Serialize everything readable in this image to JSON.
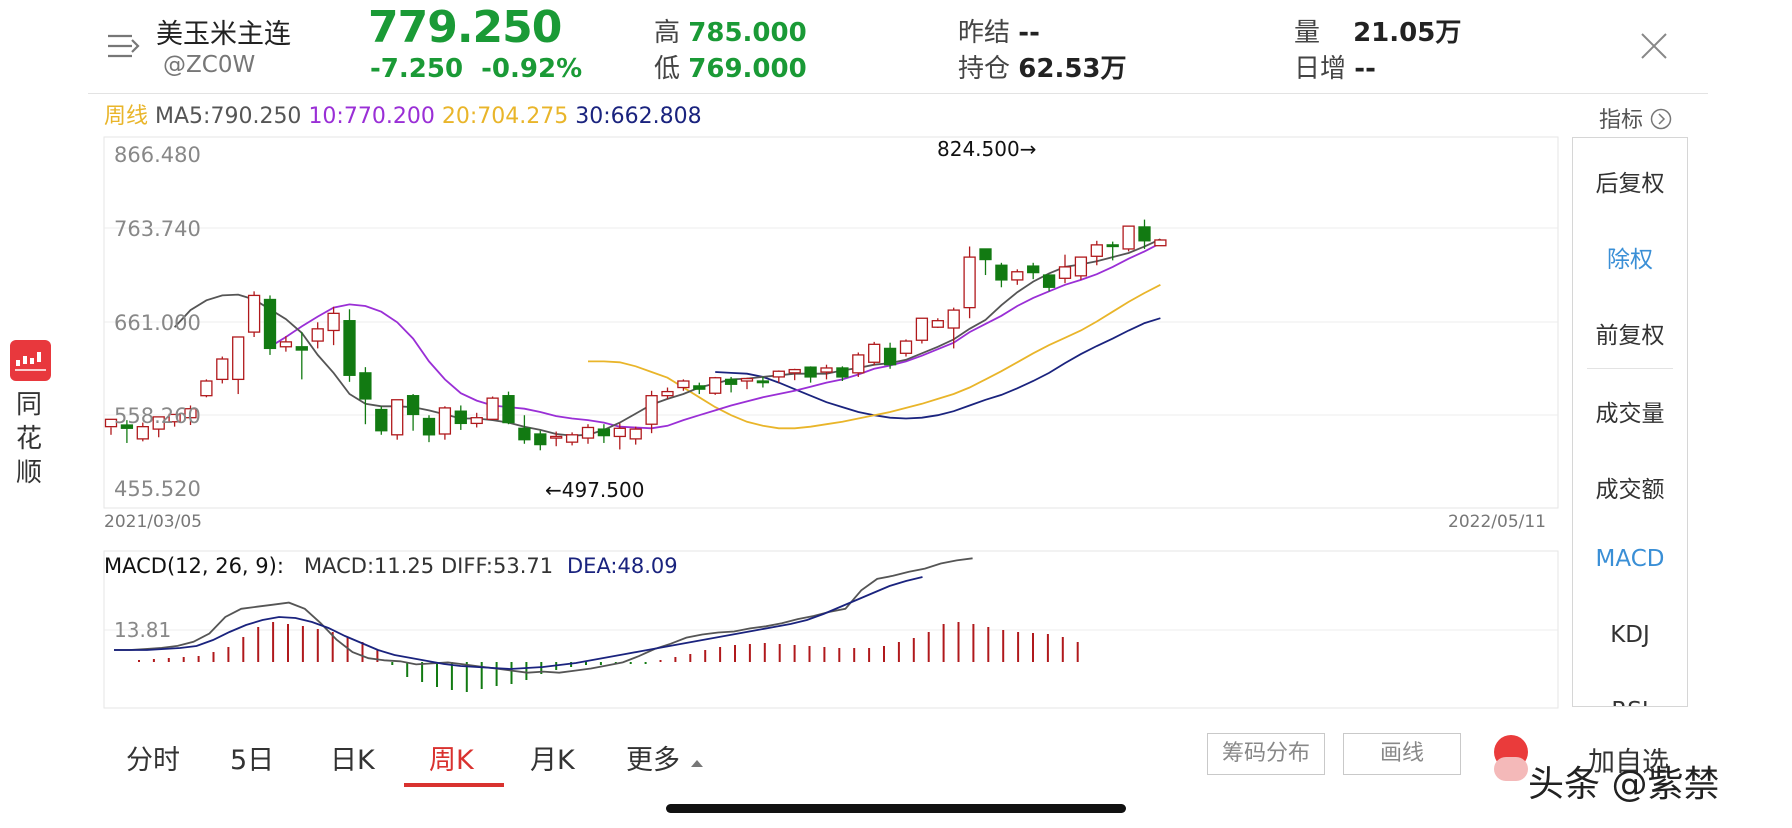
{
  "header": {
    "name": "美玉米主连",
    "code": "@ZC0W",
    "price": "779.250",
    "change": "-7.250",
    "change_pct": "-0.92%",
    "high_label": "高",
    "high_value": "785.000",
    "low_label": "低",
    "low_value": "769.000",
    "prev_settle_label": "昨结",
    "prev_settle_value": "--",
    "open_interest_label": "持仓",
    "open_interest_value": "62.53万",
    "volume_label": "量",
    "volume_value": "21.05万",
    "daily_inc_label": "日增",
    "daily_inc_value": "--",
    "icons": {
      "menu": "menu-lines-icon",
      "close": "close-icon"
    }
  },
  "ma_row": {
    "period": "周线",
    "ma5": "MA5:790.250",
    "ma10": "10:770.200",
    "ma20": "20:704.275",
    "ma30": "30:662.808"
  },
  "indicator_label": "指标",
  "chart_data": {
    "type": "candlestick",
    "y_ticks": [
      "866.480",
      "763.740",
      "661.000",
      "558.260",
      "455.520"
    ],
    "ylim": [
      455.52,
      866.48
    ],
    "x_start": "2021/03/05",
    "x_end": "2022/05/11",
    "max_label": "824.500→",
    "min_label": "←497.500",
    "candles": [
      [
        532,
        541,
        531,
        522
      ],
      [
        534,
        530,
        540,
        512
      ],
      [
        517,
        532,
        537,
        514
      ],
      [
        529,
        544,
        544,
        519
      ],
      [
        538,
        547,
        547,
        532
      ],
      [
        543,
        554,
        558,
        534
      ],
      [
        570,
        588,
        590,
        568
      ],
      [
        590,
        615,
        618,
        585
      ],
      [
        590,
        642,
        642,
        572
      ],
      [
        648,
        693,
        698,
        642
      ],
      [
        688,
        628,
        693,
        620
      ],
      [
        630,
        636,
        643,
        624
      ],
      [
        630,
        626,
        648,
        590
      ],
      [
        637,
        652,
        660,
        628
      ],
      [
        650,
        671,
        679,
        632
      ],
      [
        662,
        595,
        676,
        587
      ],
      [
        598,
        566,
        605,
        535
      ],
      [
        553,
        527,
        557,
        522
      ],
      [
        522,
        565,
        565,
        516
      ],
      [
        570,
        547,
        572,
        527
      ],
      [
        542,
        522,
        546,
        513
      ],
      [
        523,
        555,
        557,
        516
      ],
      [
        551,
        536,
        558,
        528
      ],
      [
        536,
        543,
        549,
        531
      ],
      [
        541,
        567,
        569,
        541
      ],
      [
        570,
        537,
        575,
        535
      ],
      [
        530,
        516,
        546,
        511
      ],
      [
        523,
        510,
        527,
        503
      ],
      [
        518,
        520,
        526,
        508
      ],
      [
        513,
        522,
        525,
        509
      ],
      [
        518,
        531,
        535,
        511
      ],
      [
        529,
        521,
        535,
        512
      ],
      [
        520,
        530,
        536,
        504
      ],
      [
        517,
        529,
        532,
        510
      ],
      [
        535,
        570,
        576,
        524
      ],
      [
        570,
        575,
        580,
        566
      ],
      [
        580,
        588,
        590,
        576
      ],
      [
        582,
        578,
        586,
        572
      ],
      [
        573,
        592,
        593,
        571
      ],
      [
        590,
        584,
        593,
        574
      ],
      [
        588,
        591,
        592,
        578
      ],
      [
        588,
        586,
        593,
        580
      ],
      [
        593,
        600,
        601,
        586
      ],
      [
        598,
        602,
        603,
        589
      ],
      [
        605,
        593,
        606,
        586
      ],
      [
        599,
        604,
        608,
        590
      ],
      [
        604,
        593,
        606,
        588
      ],
      [
        598,
        620,
        623,
        593
      ],
      [
        611,
        633,
        636,
        607
      ],
      [
        628,
        608,
        635,
        603
      ],
      [
        622,
        637,
        639,
        618
      ],
      [
        638,
        665,
        665,
        634
      ],
      [
        654,
        662,
        665,
        653
      ],
      [
        653,
        675,
        678,
        628
      ],
      [
        678,
        740,
        753,
        665
      ],
      [
        750,
        737,
        750,
        718
      ],
      [
        730,
        712,
        733,
        703
      ],
      [
        712,
        722,
        725,
        706
      ],
      [
        729,
        721,
        733,
        713
      ],
      [
        718,
        703,
        716,
        698
      ],
      [
        714,
        728,
        743,
        708
      ],
      [
        717,
        740,
        738,
        712
      ],
      [
        741,
        755,
        760,
        730
      ],
      [
        755,
        753,
        759,
        736
      ],
      [
        750,
        778,
        778,
        747
      ],
      [
        777,
        760,
        786,
        750
      ],
      [
        754,
        761,
        762,
        755
      ]
    ],
    "ma5": [
      654,
      675,
      687,
      693,
      694,
      688,
      676,
      664,
      647,
      620,
      598,
      572,
      560,
      557,
      557,
      556,
      552,
      547,
      542,
      542,
      540,
      537,
      532,
      528,
      523,
      521,
      522,
      528,
      537,
      548,
      559,
      566,
      572,
      580,
      585,
      590,
      591,
      593,
      595,
      597,
      597,
      597,
      601,
      604,
      608,
      610,
      614,
      622,
      630,
      639,
      652,
      663,
      681,
      697,
      710,
      720,
      728,
      731,
      735,
      740,
      745,
      753,
      762
    ],
    "ma10": [
      630,
      642,
      655,
      667,
      678,
      682,
      680,
      673,
      660,
      640,
      612,
      590,
      573,
      564,
      558,
      556,
      554,
      550,
      545,
      542,
      540,
      537,
      532,
      531,
      530,
      533,
      540,
      546,
      552,
      558,
      563,
      568,
      572,
      576,
      581,
      586,
      590,
      596,
      603,
      607,
      612,
      619,
      627,
      635,
      648,
      658,
      668,
      680,
      690,
      698,
      706,
      712,
      719,
      728,
      738,
      747,
      757
    ],
    "ma20": [
      612,
      612,
      611,
      606,
      599,
      592,
      580,
      568,
      556,
      546,
      538,
      533,
      530,
      530,
      532,
      535,
      538,
      542,
      546,
      550,
      555,
      560,
      566,
      572,
      580,
      590,
      600,
      611,
      622,
      632,
      641,
      650,
      661,
      673,
      685,
      696,
      706
    ],
    "ma30": [
      599,
      598,
      597,
      593,
      586,
      578,
      570,
      562,
      556,
      550,
      546,
      543,
      542,
      543,
      546,
      551,
      558,
      565,
      571,
      579,
      588,
      598,
      610,
      621,
      631,
      640,
      650,
      659,
      665
    ],
    "macd_panel": {
      "label": "MACD(12, 26, 9):",
      "macd": "MACD:11.25",
      "diff": "DIFF:53.71",
      "dea": "DEA:48.09",
      "y_tick": "13.81",
      "hist": [
        2,
        3,
        4,
        5,
        6,
        10,
        15,
        25,
        35,
        40,
        38,
        36,
        33,
        30,
        25,
        20,
        12,
        -3,
        -15,
        -20,
        -25,
        -28,
        -30,
        -27,
        -24,
        -22,
        -18,
        -12,
        -8,
        -5,
        -3,
        -3,
        -2,
        -2,
        -2,
        2,
        5,
        8,
        12,
        15,
        17,
        18,
        19,
        18,
        17,
        16,
        15,
        14,
        14,
        14,
        16,
        20,
        24,
        30,
        38,
        40,
        38,
        35,
        32,
        30,
        29,
        28,
        25,
        20
      ],
      "diff_line": [
        0,
        0,
        1,
        2,
        4,
        8,
        16,
        32,
        40,
        42,
        44,
        46,
        40,
        26,
        10,
        -2,
        -8,
        -10,
        -11,
        -14,
        -13,
        -12,
        -14,
        -16,
        -18,
        -20,
        -22,
        -21,
        -22,
        -20,
        -18,
        -15,
        -12,
        -6,
        1,
        6,
        12,
        15,
        17,
        18,
        21,
        23,
        26,
        30,
        33,
        37,
        40,
        58,
        69,
        72,
        76,
        79,
        84,
        87,
        89
      ],
      "dea_line": [
        0,
        0,
        0,
        1,
        2,
        4,
        10,
        18,
        25,
        30,
        33,
        32,
        28,
        22,
        14,
        7,
        0,
        -5,
        -8,
        -11,
        -14,
        -16,
        -17,
        -18,
        -19,
        -18,
        -17,
        -15,
        -13,
        -10,
        -7,
        -4,
        -1,
        2,
        5,
        8,
        11,
        14,
        17,
        20,
        23,
        26,
        30,
        36,
        43,
        50,
        57,
        64,
        69,
        73
      ]
    },
    "colors": {
      "up": "#b0191c",
      "down": "#127a12",
      "ma5": "#555555",
      "ma10": "#9a2fd6",
      "ma20": "#e9b52a",
      "ma30": "#1a237e"
    }
  },
  "side_panel": {
    "items": [
      "后复权",
      "除权",
      "前复权",
      "成交量",
      "成交额",
      "MACD",
      "KDJ",
      "RSI"
    ],
    "active": [
      "除权",
      "MACD"
    ]
  },
  "logo_text": [
    "同",
    "花",
    "顺"
  ],
  "tabs": [
    "分时",
    "5日",
    "日K",
    "周K",
    "月K",
    "更多"
  ],
  "active_tab": "周K",
  "buttons": {
    "chips": "筹码分布",
    "draw": "画线",
    "add_fav": "加自选"
  },
  "watermark": "头条 @紫禁"
}
